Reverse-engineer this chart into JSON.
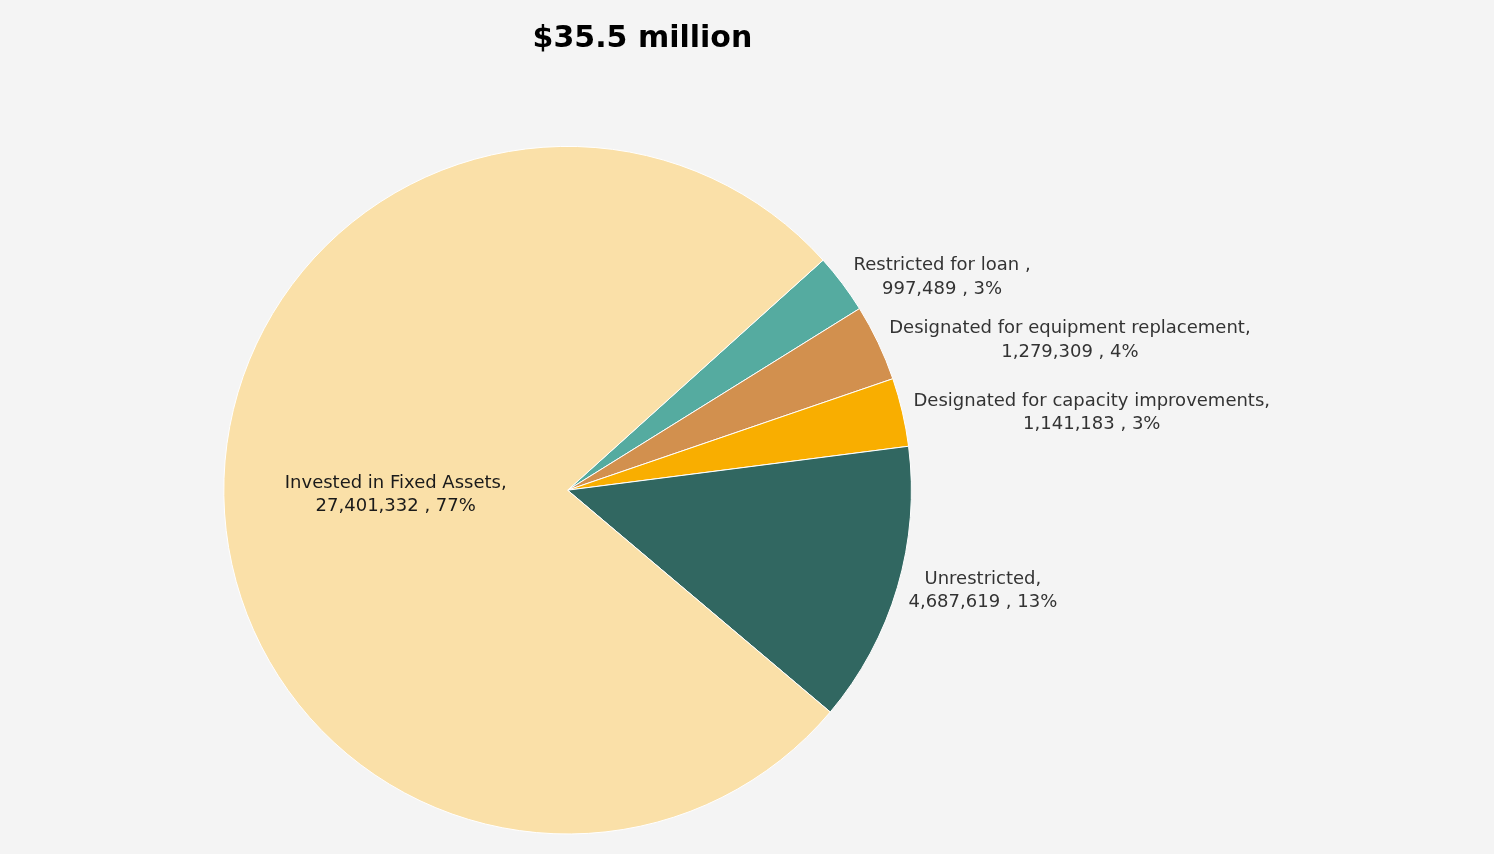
{
  "chart_data": {
    "type": "pie",
    "title": "$35.5 million",
    "categories": [
      "Restricted for loan",
      "Designated for equipment replacement",
      "Designated for capacity improvements",
      "Unrestricted",
      "Invested in Fixed Assets"
    ],
    "values": [
      997489,
      1279309,
      1141183,
      4687619,
      27401332
    ],
    "colors": [
      "#55aba0",
      "#d2904e",
      "#f9ae00",
      "#316761",
      "#fae0a8"
    ],
    "value_labels": [
      " , 997,489 , 3%",
      ", 1,279,309 , 4%",
      ", 1,141,183 , 3%",
      ", 4,687,619 , 13%",
      ", 27,401,332 , 77%"
    ]
  }
}
